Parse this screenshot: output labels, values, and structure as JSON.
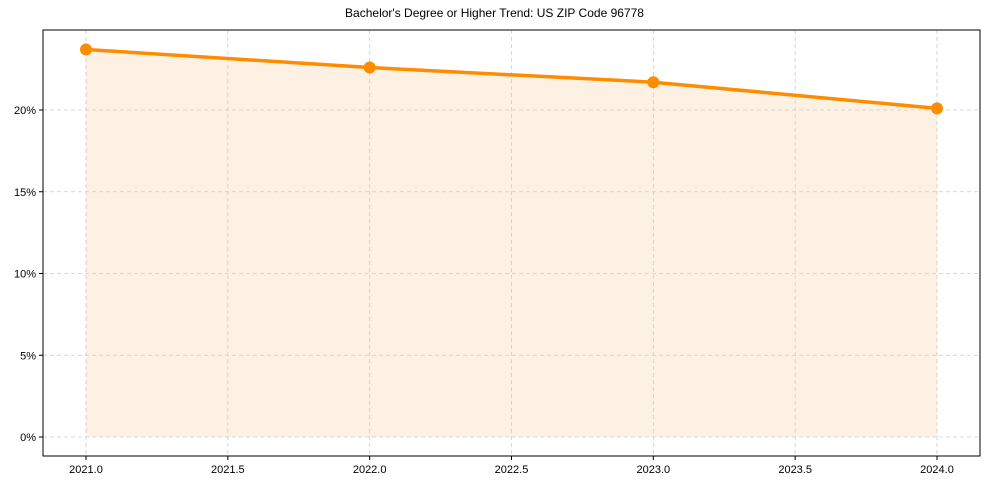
{
  "chart_data": {
    "type": "area",
    "title": "Bachelor's Degree or Higher Trend: US ZIP Code 96778",
    "xlabel": "",
    "ylabel": "",
    "x": [
      2021,
      2022,
      2023,
      2024
    ],
    "series": [
      {
        "name": "Bachelor's Degree or Higher",
        "values": [
          23.7,
          22.6,
          21.7,
          20.1
        ],
        "color": "#ff8c00",
        "fill": "#fdf1e4"
      }
    ],
    "xlim": [
      2020.85,
      2024.15
    ],
    "ylim": [
      -1.2,
      24.9
    ],
    "xticks": [
      2021.0,
      2021.5,
      2022.0,
      2022.5,
      2023.0,
      2023.5,
      2024.0
    ],
    "xtick_labels": [
      "2021.0",
      "2021.5",
      "2022.0",
      "2022.5",
      "2023.0",
      "2023.5",
      "2024.0"
    ],
    "yticks": [
      0,
      5,
      10,
      15,
      20
    ],
    "ytick_labels": [
      "0%",
      "5%",
      "10%",
      "15%",
      "20%"
    ],
    "grid": true,
    "grid_style": "dashed",
    "legend": false,
    "marker": "circle"
  }
}
